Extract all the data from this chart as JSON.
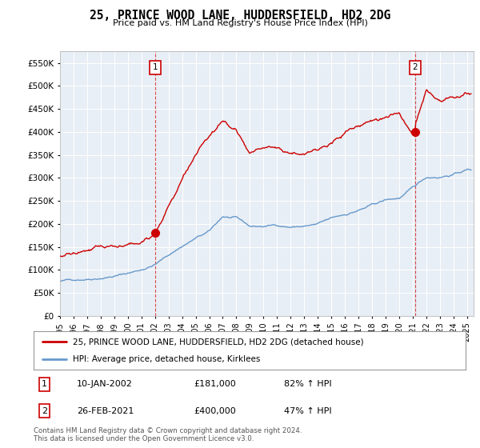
{
  "title": "25, PRINCE WOOD LANE, HUDDERSFIELD, HD2 2DG",
  "subtitle": "Price paid vs. HM Land Registry's House Price Index (HPI)",
  "ytick_values": [
    0,
    50000,
    100000,
    150000,
    200000,
    250000,
    300000,
    350000,
    400000,
    450000,
    500000,
    550000
  ],
  "ylim": [
    0,
    575000
  ],
  "xlim_start": 1995.0,
  "xlim_end": 2025.5,
  "marker1_x": 2002.04,
  "marker1_y": 181000,
  "marker1_label": "1",
  "marker2_x": 2021.16,
  "marker2_y": 400000,
  "marker2_label": "2",
  "sale1_date": "10-JAN-2002",
  "sale1_price": "£181,000",
  "sale1_pct": "82% ↑ HPI",
  "sale2_date": "26-FEB-2021",
  "sale2_price": "£400,000",
  "sale2_pct": "47% ↑ HPI",
  "red_line_color": "#cc0000",
  "blue_line_color": "#6699cc",
  "plot_bg_color": "#e8eef5",
  "legend_label_red": "25, PRINCE WOOD LANE, HUDDERSFIELD, HD2 2DG (detached house)",
  "legend_label_blue": "HPI: Average price, detached house, Kirklees",
  "footer": "Contains HM Land Registry data © Crown copyright and database right 2024.\nThis data is licensed under the Open Government Licence v3.0.",
  "grid_color": "#ffffff",
  "background_color": "#ffffff",
  "xtick_years": [
    1995,
    1996,
    1997,
    1998,
    1999,
    2000,
    2001,
    2002,
    2003,
    2004,
    2005,
    2006,
    2007,
    2008,
    2009,
    2010,
    2011,
    2012,
    2013,
    2014,
    2015,
    2016,
    2017,
    2018,
    2019,
    2020,
    2021,
    2022,
    2023,
    2024,
    2025
  ],
  "blue_keypoints_x": [
    1995,
    1996,
    1997,
    1998,
    1999,
    2000,
    2001,
    2002,
    2003,
    2004,
    2005,
    2006,
    2007,
    2008,
    2009,
    2010,
    2011,
    2012,
    2013,
    2014,
    2015,
    2016,
    2017,
    2018,
    2019,
    2020,
    2021,
    2022,
    2023,
    2024,
    2025
  ],
  "blue_keypoints_y": [
    75000,
    78000,
    82000,
    87000,
    92000,
    98000,
    106000,
    118000,
    138000,
    158000,
    175000,
    188000,
    220000,
    215000,
    195000,
    195000,
    198000,
    195000,
    197000,
    200000,
    210000,
    218000,
    228000,
    238000,
    248000,
    252000,
    272000,
    295000,
    298000,
    305000,
    315000
  ],
  "red_keypoints_x": [
    1995,
    1996,
    1997,
    1998,
    1999,
    2000,
    2001,
    2002,
    2003,
    2004,
    2005,
    2006,
    2007,
    2008,
    2009,
    2010,
    2011,
    2012,
    2013,
    2014,
    2015,
    2016,
    2017,
    2018,
    2019,
    2020,
    2021,
    2022,
    2023,
    2024,
    2025
  ],
  "red_keypoints_y": [
    130000,
    135000,
    138000,
    142000,
    145000,
    148000,
    152000,
    181000,
    240000,
    300000,
    350000,
    380000,
    415000,
    390000,
    345000,
    350000,
    355000,
    345000,
    350000,
    360000,
    375000,
    395000,
    408000,
    420000,
    435000,
    445000,
    400000,
    490000,
    455000,
    460000,
    470000
  ],
  "noise_seed": 42
}
